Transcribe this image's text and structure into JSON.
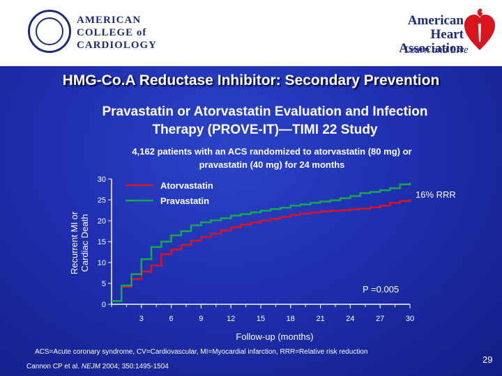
{
  "header": {
    "acc_name": [
      "AMERICAN",
      "COLLEGE of",
      "CARDIOLOGY"
    ],
    "aha_name": [
      "American Heart",
      "Association"
    ],
    "aha_tagline": "Learn and Live"
  },
  "slide": {
    "title": "HMG-Co.A Reductase Inhibitor: Secondary Prevention",
    "subtitle_line1": "Pravastatin or Atorvastatin Evaluation and Infection",
    "subtitle_line2": "Therapy (PROVE-IT)—TIMI 22 Study",
    "desc_line1": "4,162 patients with an ACS randomized to atorvastatin (80 mg) or",
    "desc_line2": "pravastatin (40 mg) for 24 months",
    "footnote": "ACS=Acute coronary syndrome, CV=Cardiovascular, MI=Myocardial infarction, RRR=Relative risk reduction",
    "citation_prefix": "Cannon CP et al.",
    "citation_journal": "NEJM",
    "citation_suffix": "2004; 350:1495-1504",
    "page_number": "29"
  },
  "chart_data": {
    "type": "line",
    "xlabel": "Follow-up (months)",
    "ylabel": "Recurrent MI or Cardiac Death",
    "xlim": [
      0,
      30
    ],
    "ylim": [
      0,
      30
    ],
    "x_ticks": [
      "3",
      "6",
      "9",
      "12",
      "15",
      "18",
      "21",
      "24",
      "27",
      "30"
    ],
    "y_ticks": [
      "0",
      "5",
      "10",
      "15",
      "20",
      "25",
      "30"
    ],
    "grid": false,
    "legend_position": "top-left",
    "annotations": {
      "rrr": "16% RRR",
      "p_value": "P =0.005"
    },
    "series": [
      {
        "name": "Atorvastatin",
        "color": "#e0121e",
        "x": [
          0,
          1,
          2,
          3,
          4,
          5,
          6,
          7,
          8,
          9,
          10,
          11,
          12,
          13,
          14,
          15,
          16,
          17,
          18,
          19,
          20,
          21,
          22,
          23,
          24,
          25,
          26,
          27,
          28,
          29,
          30
        ],
        "y": [
          0.8,
          4.2,
          6.0,
          7.8,
          9.3,
          12.0,
          13.1,
          14.2,
          15.2,
          16.1,
          16.9,
          17.7,
          18.4,
          19.1,
          19.6,
          20.1,
          20.5,
          20.9,
          21.4,
          21.7,
          22.0,
          22.2,
          22.4,
          22.5,
          22.7,
          22.9,
          23.2,
          23.6,
          24.3,
          24.7,
          25.1
        ]
      },
      {
        "name": "Pravastatin",
        "color": "#17a84a",
        "x": [
          0,
          1,
          2,
          3,
          4,
          5,
          6,
          7,
          8,
          9,
          10,
          11,
          12,
          13,
          14,
          15,
          16,
          17,
          18,
          19,
          20,
          21,
          22,
          23,
          24,
          25,
          26,
          27,
          28,
          29,
          30
        ],
        "y": [
          0.8,
          4.5,
          7.2,
          10.8,
          13.7,
          15.0,
          16.5,
          17.5,
          18.9,
          19.6,
          20.1,
          20.6,
          21.2,
          21.6,
          22.0,
          22.4,
          22.8,
          23.1,
          23.6,
          23.9,
          24.3,
          24.6,
          24.9,
          25.4,
          25.9,
          26.6,
          26.9,
          27.3,
          27.8,
          28.7,
          29.1
        ]
      }
    ]
  }
}
